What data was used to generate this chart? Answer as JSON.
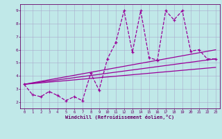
{
  "xlabel": "Windchill (Refroidissement éolien,°C)",
  "bg_color": "#c0e8e8",
  "line_color": "#990099",
  "grid_color": "#aaaacc",
  "spine_color": "#660066",
  "xlim": [
    -0.5,
    23.5
  ],
  "ylim": [
    1.5,
    9.5
  ],
  "yticks": [
    2,
    3,
    4,
    5,
    6,
    7,
    8,
    9
  ],
  "xticks": [
    0,
    1,
    2,
    3,
    4,
    5,
    6,
    7,
    8,
    9,
    10,
    11,
    12,
    13,
    14,
    15,
    16,
    17,
    18,
    19,
    20,
    21,
    22,
    23
  ],
  "series1_x": [
    0,
    1,
    2,
    3,
    4,
    5,
    6,
    7,
    8,
    9,
    10,
    11,
    12,
    13,
    14,
    15,
    16,
    17,
    18,
    19,
    20,
    21,
    22,
    23
  ],
  "series1_y": [
    3.35,
    2.55,
    2.4,
    2.8,
    2.5,
    2.1,
    2.4,
    2.1,
    4.2,
    2.9,
    5.3,
    6.55,
    9.0,
    5.8,
    9.0,
    5.4,
    5.2,
    9.0,
    8.3,
    9.0,
    5.9,
    6.0,
    5.3,
    5.3
  ],
  "series2_x": [
    0,
    23
  ],
  "series2_y": [
    3.35,
    4.65
  ],
  "series3_x": [
    0,
    23
  ],
  "series3_y": [
    3.35,
    6.0
  ],
  "series4_x": [
    0,
    23
  ],
  "series4_y": [
    3.35,
    5.3
  ]
}
